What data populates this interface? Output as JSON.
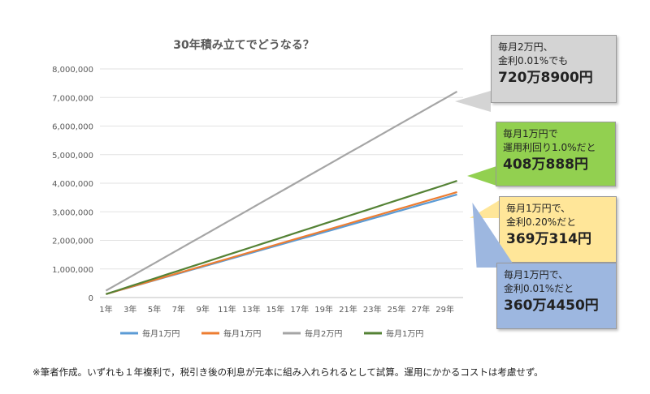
{
  "chart_data": {
    "type": "line",
    "title": "30年積み立てでどうなる？",
    "x": [
      1,
      2,
      3,
      4,
      5,
      6,
      7,
      8,
      9,
      10,
      11,
      12,
      13,
      14,
      15,
      16,
      17,
      18,
      19,
      20,
      21,
      22,
      23,
      24,
      25,
      26,
      27,
      28,
      29,
      30
    ],
    "xtick_labels": [
      "1年",
      "3年",
      "5年",
      "7年",
      "9年",
      "11年",
      "13年",
      "15年",
      "17年",
      "19年",
      "21年",
      "23年",
      "25年",
      "27年",
      "29年"
    ],
    "ylim": [
      0,
      8000000
    ],
    "yticks": [
      "0",
      "1,000,000",
      "2,000,000",
      "3,000,000",
      "4,000,000",
      "5,000,000",
      "6,000,000",
      "7,000,000",
      "8,000,000"
    ],
    "grid": "horizontal",
    "legend_position": "bottom",
    "series": [
      {
        "name": "毎月1万円",
        "color": "#5b9bd5",
        "start": 120000,
        "end": 3604450
      },
      {
        "name": "毎月1万円",
        "color": "#ed7d31",
        "start": 120000,
        "end": 3690314
      },
      {
        "name": "毎月2万円",
        "color": "#a5a5a5",
        "start": 240000,
        "end": 7208900
      },
      {
        "name": "毎月1万円",
        "color": "#548235",
        "start": 120000,
        "end": 4080888
      }
    ]
  },
  "callouts": [
    {
      "line1": "毎月2万円、",
      "line2": "金利0.01%でも",
      "value": "720万8900円",
      "color": "#d4d4d4"
    },
    {
      "line1": "毎月1万円で",
      "line2": "運用利回り1.0%だと",
      "value": "408万888円",
      "color": "#92d050"
    },
    {
      "line1": "毎月1万円で、",
      "line2": "金利0.20%だと",
      "value": "369万314円",
      "color": "#ffe699"
    },
    {
      "line1": "毎月1万円で、",
      "line2": "金利0.01%だと",
      "value": "360万4450円",
      "color": "#9db7e0"
    }
  ],
  "footnote": "※筆者作成。いずれも１年複利で，税引き後の利息が元本に組み入れられるとして試算。運用にかかるコストは考慮せず。"
}
